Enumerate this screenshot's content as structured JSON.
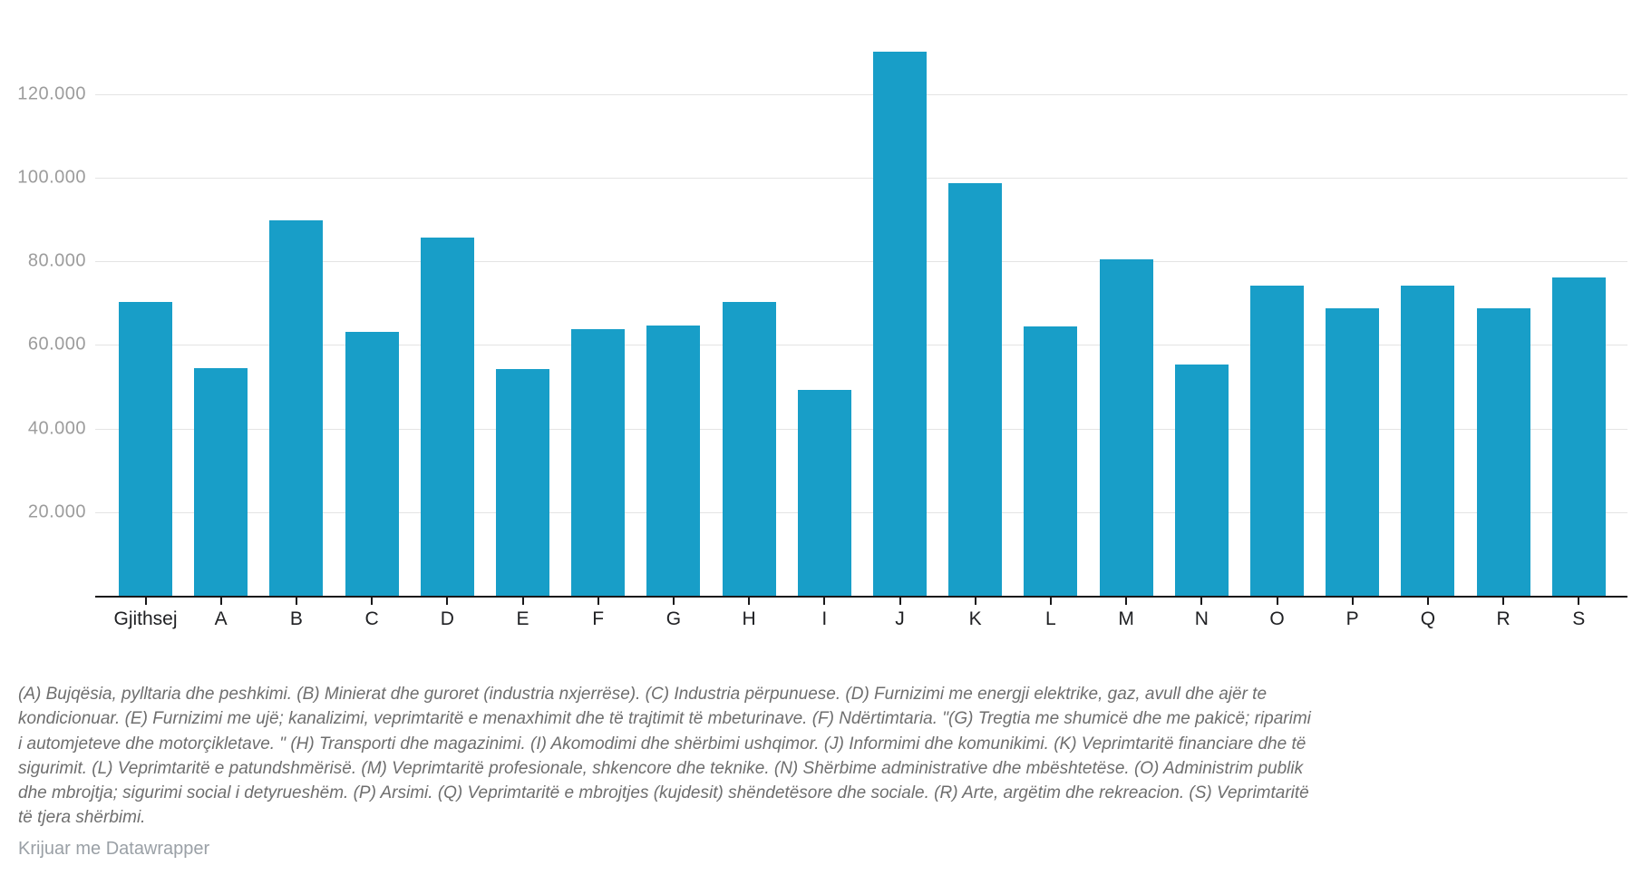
{
  "chart_data": {
    "type": "bar",
    "title": "",
    "categories": [
      "Gjithsej",
      "A",
      "B",
      "C",
      "D",
      "E",
      "F",
      "G",
      "H",
      "I",
      "J",
      "K",
      "L",
      "M",
      "N",
      "O",
      "P",
      "Q",
      "R",
      "S"
    ],
    "values": [
      70500,
      54600,
      90000,
      63300,
      86000,
      54500,
      64000,
      64900,
      70600,
      49400,
      130300,
      99000,
      64600,
      80800,
      55600,
      74500,
      69000,
      74500,
      69000,
      76300
    ],
    "y_ticks": [
      {
        "value": 20000,
        "label": "20.000"
      },
      {
        "value": 40000,
        "label": "40.000"
      },
      {
        "value": 60000,
        "label": "60.000"
      },
      {
        "value": 80000,
        "label": "80.000"
      },
      {
        "value": 100000,
        "label": "100.000"
      },
      {
        "value": 120000,
        "label": "120.000"
      }
    ],
    "ylim": [
      0,
      142700
    ],
    "xlabel": "",
    "ylabel": "",
    "grid": "horizontal",
    "legend_position": "none",
    "bar_color": "#189EC8",
    "gridline_color": "#e4e4e4",
    "axis_line_color": "#18181a",
    "y_label_color": "#9c9c9c",
    "x_label_color": "#202124"
  },
  "footnote": {
    "lines": [
      "(A) Bujqësia, pylltaria dhe peshkimi. (B) Minierat dhe guroret (industria nxjerrëse). (C) Industria përpunuese. (D) Furnizimi me energji elektrike, gaz, avull dhe ajër te",
      "kondicionuar. (E) Furnizimi me ujë; kanalizimi, veprimtaritë e menaxhimit dhe të trajtimit të mbeturinave. (F) Ndërtimtaria. \"(G) Tregtia me shumicë dhe me pakicë; riparimi",
      "i automjeteve dhe motorçikletave. \" (H) Transporti dhe magazinimi. (I) Akomodimi dhe shërbimi ushqimor. (J) Informimi dhe komunikimi. (K) Veprimtaritë financiare dhe të",
      "sigurimit. (L) Veprimtaritë e patundshmërisë. (M) Veprimtaritë profesionale, shkencore dhe teknike. (N) Shërbime administrative dhe mbështetëse. (O) Administrim publik",
      "dhe mbrojtja; sigurimi social i detyrueshëm. (P) Arsimi. (Q) Veprimtaritë e mbrojtjes (kujdesit) shëndetësore dhe sociale. (R) Arte, argëtim dhe rekreacion. (S) Veprimtaritë",
      "të tjera shërbimi."
    ]
  },
  "credit": {
    "label": "Krijuar me Datawrapper"
  }
}
